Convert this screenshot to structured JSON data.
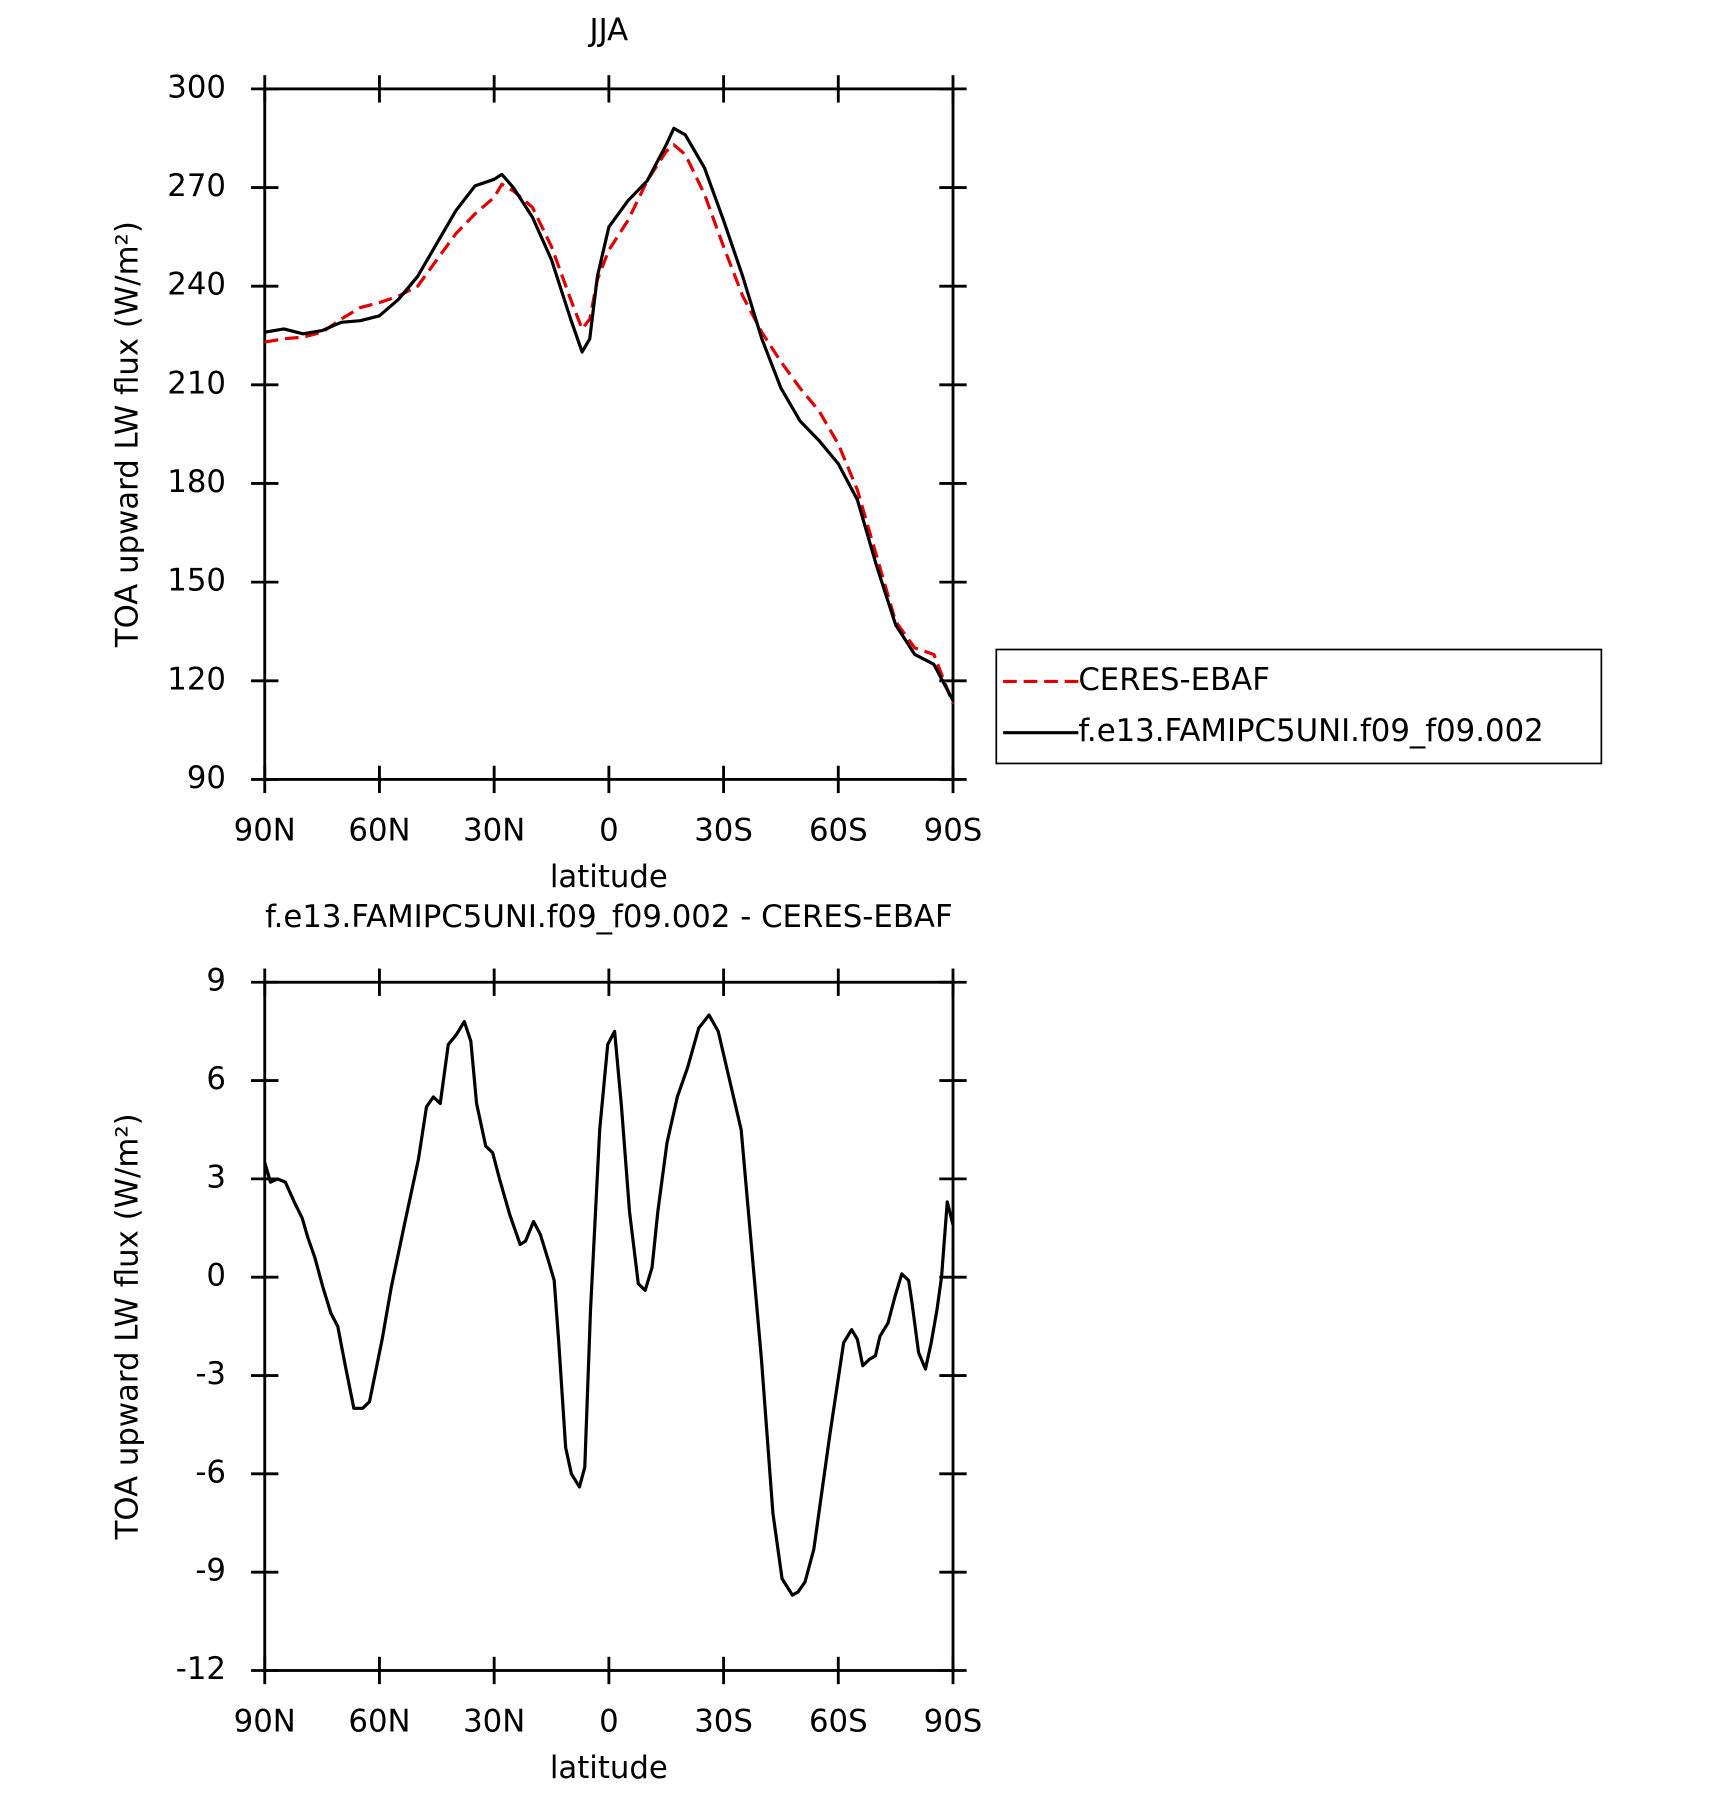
{
  "chart_data": [
    {
      "type": "line",
      "title": "JJA",
      "xlabel": "latitude",
      "ylabel": "TOA upward LW flux (W/m²)",
      "x": [
        90,
        85,
        80,
        75,
        70,
        65,
        60,
        55,
        50,
        45,
        40,
        35,
        30,
        28,
        25,
        20,
        15,
        10,
        7,
        5,
        3,
        0,
        -5,
        -10,
        -15,
        -17,
        -20,
        -25,
        -30,
        -35,
        -40,
        -45,
        -50,
        -55,
        -60,
        -65,
        -70,
        -75,
        -80,
        -85,
        -90
      ],
      "series": [
        {
          "name": "CERES-EBAF",
          "color": "#e00000",
          "dash": true,
          "values": [
            223,
            224,
            224.5,
            226,
            230,
            233.5,
            235,
            237,
            240,
            248,
            256,
            262,
            267,
            271,
            269,
            264,
            252,
            236,
            227,
            230,
            242,
            251,
            260,
            272,
            281,
            283,
            280,
            268,
            252,
            237,
            226,
            217,
            209,
            202,
            192,
            178,
            158,
            138,
            130,
            128,
            113
          ]
        },
        {
          "name": "f.e13.FAMIPC5UNI.f09_f09.002",
          "color": "#000000",
          "dash": false,
          "values": [
            226,
            227,
            225.5,
            226.5,
            229,
            229.5,
            231,
            236,
            243,
            253,
            263,
            270.5,
            272.5,
            274,
            270,
            261,
            248,
            230,
            220,
            224,
            243,
            258,
            266,
            272,
            283,
            288,
            286,
            276,
            260,
            243,
            224,
            209,
            199,
            193,
            186,
            175,
            155,
            137,
            128,
            125,
            114
          ]
        }
      ],
      "xlim": [
        90,
        -90
      ],
      "xticks": [
        {
          "value": 90,
          "label": "90N"
        },
        {
          "value": 60,
          "label": "60N"
        },
        {
          "value": 30,
          "label": "30N"
        },
        0,
        {
          "value": -30,
          "label": "30S"
        },
        {
          "value": -60,
          "label": "60S"
        },
        {
          "value": -90,
          "label": "90S"
        }
      ],
      "ylim": [
        90,
        300
      ],
      "yticks": [
        90,
        120,
        150,
        180,
        210,
        240,
        270,
        300
      ],
      "legend": "right"
    },
    {
      "type": "line",
      "title": "f.e13.FAMIPC5UNI.f09_f09.002 - CERES-EBAF",
      "xlabel": "latitude",
      "ylabel": "TOA upward LW flux (W/m²)",
      "x": [
        90.0,
        88.5,
        86.7,
        84.6,
        82.3,
        80.2,
        78.7,
        76.9,
        74.8,
        72.7,
        70.9,
        69.1,
        66.7,
        64.4,
        62.6,
        59.3,
        56.9,
        53.3,
        49.8,
        47.7,
        45.9,
        44.1,
        42.0,
        39.9,
        37.8,
        36.1,
        34.6,
        32.2,
        30.4,
        28.6,
        25.9,
        23.2,
        21.8,
        19.7,
        17.9,
        15.8,
        14.3,
        13.1,
        11.3,
        9.8,
        7.7,
        6.3,
        4.8,
        2.4,
        0.3,
        -1.5,
        -3.3,
        -5.4,
        -7.7,
        -9.5,
        -11.3,
        -12.8,
        -15.2,
        -17.9,
        -20.6,
        -23.5,
        -26.2,
        -28.6,
        -31.6,
        -34.6,
        -39.9,
        -42.9,
        -45.3,
        -48.0,
        -49.5,
        -51.3,
        -53.6,
        -57.8,
        -61.4,
        -63.5,
        -65.0,
        -66.4,
        -68.2,
        -69.7,
        -70.9,
        -73.0,
        -74.8,
        -76.6,
        -78.4,
        -79.3,
        -81.0,
        -82.8,
        -84.3,
        -85.8,
        -87.0,
        -88.5,
        -90.0
      ],
      "series": [
        {
          "color": "#000000",
          "dash": false,
          "values": [
            3.5,
            2.9,
            3.0,
            2.9,
            2.3,
            1.8,
            1.2,
            0.6,
            -0.3,
            -1.1,
            -1.5,
            -2.6,
            -4.0,
            -4.0,
            -3.8,
            -1.9,
            -0.3,
            1.7,
            3.6,
            5.2,
            5.5,
            5.3,
            7.1,
            7.4,
            7.8,
            7.2,
            5.3,
            4.0,
            3.8,
            3.0,
            1.9,
            1.0,
            1.1,
            1.7,
            1.3,
            0.5,
            -0.1,
            -2.0,
            -5.2,
            -6.0,
            -6.4,
            -5.8,
            -1.0,
            4.5,
            7.1,
            7.5,
            5.2,
            2.0,
            -0.2,
            -0.4,
            0.3,
            2.0,
            4.1,
            5.5,
            6.4,
            7.6,
            8.0,
            7.5,
            6.0,
            4.5,
            -2.5,
            -7.2,
            -9.2,
            -9.7,
            -9.6,
            -9.3,
            -8.3,
            -4.8,
            -2.0,
            -1.6,
            -1.9,
            -2.7,
            -2.5,
            -2.4,
            -1.8,
            -1.4,
            -0.6,
            0.1,
            -0.1,
            -0.8,
            -2.3,
            -2.8,
            -2.0,
            -1.0,
            0.0,
            2.3,
            1.6
          ]
        }
      ],
      "xlim": [
        90,
        -90
      ],
      "xticks": [
        {
          "value": 90,
          "label": "90N"
        },
        {
          "value": 60,
          "label": "60N"
        },
        {
          "value": 30,
          "label": "30N"
        },
        0,
        {
          "value": -30,
          "label": "30S"
        },
        {
          "value": -60,
          "label": "60S"
        },
        {
          "value": -90,
          "label": "90S"
        }
      ],
      "ylim": [
        -12,
        9
      ],
      "yticks": [
        -12,
        -9,
        -6,
        -3,
        0,
        3,
        6,
        9
      ]
    }
  ]
}
